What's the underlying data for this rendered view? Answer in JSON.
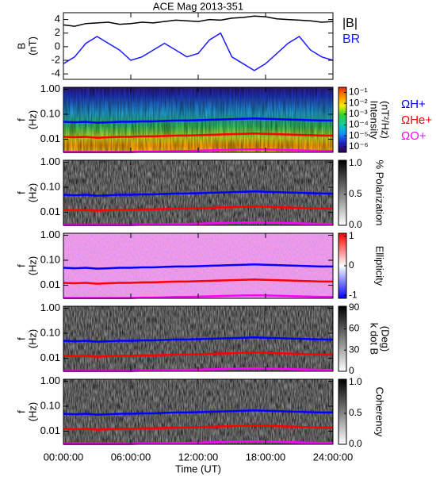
{
  "chart_data": [
    {
      "type": "line",
      "title": "ACE Mag 2013-351",
      "ylabel": [
        "B",
        "(nT)"
      ],
      "ylim": [
        -4.8,
        5
      ],
      "yticks": [
        -4,
        -2,
        0,
        2,
        4
      ],
      "x": [
        0,
        1,
        2,
        3,
        4,
        5,
        6,
        7,
        8,
        9,
        10,
        11,
        12,
        13,
        14,
        15,
        16,
        17,
        18,
        19,
        20,
        21,
        22,
        23,
        24
      ],
      "series": [
        {
          "name": "|B|",
          "color": "#000000",
          "values": [
            3.2,
            3.0,
            3.4,
            3.5,
            3.6,
            3.3,
            3.4,
            3.6,
            3.5,
            3.7,
            3.9,
            3.8,
            3.7,
            4.0,
            3.9,
            4.2,
            4.3,
            4.5,
            4.4,
            4.1,
            4.0,
            3.9,
            3.8,
            3.6,
            3.7
          ]
        },
        {
          "name": "BR",
          "color": "#1a1aff",
          "values": [
            -2.5,
            -1.5,
            0.5,
            1.5,
            0.5,
            -0.5,
            -2.0,
            -1.5,
            -0.5,
            0.5,
            -0.5,
            -1.5,
            -1.0,
            1.0,
            2.0,
            -1.5,
            -2.5,
            -3.5,
            -2.5,
            -1.0,
            0.5,
            1.5,
            -0.5,
            -1.5,
            -2.0
          ]
        }
      ]
    },
    {
      "type": "spectrogram",
      "ylabel": [
        "f",
        "(Hz)"
      ],
      "log": true,
      "ylim": [
        0.003,
        1.2
      ],
      "yticks": [
        {
          "value": 1,
          "label": "1.00"
        },
        {
          "value": 0.1,
          "label": "0.10"
        },
        {
          "value": 0.01,
          "label": "0.01"
        }
      ],
      "x": [
        0,
        1,
        2,
        3,
        4,
        5,
        6,
        7,
        8,
        9,
        10,
        11,
        12,
        13,
        14,
        15,
        16,
        17,
        18,
        19,
        20,
        21,
        22,
        23,
        24
      ],
      "series": [
        {
          "name": "ΩH+",
          "color": "#0000ff",
          "values": [
            0.05,
            0.048,
            0.05,
            0.046,
            0.048,
            0.05,
            0.05,
            0.052,
            0.052,
            0.054,
            0.056,
            0.056,
            0.058,
            0.06,
            0.062,
            0.064,
            0.066,
            0.068,
            0.066,
            0.064,
            0.062,
            0.06,
            0.058,
            0.056,
            0.056
          ]
        },
        {
          "name": "ΩHe+",
          "color": "#ff0000",
          "values": [
            0.0125,
            0.012,
            0.0125,
            0.0115,
            0.012,
            0.0125,
            0.0125,
            0.013,
            0.013,
            0.0135,
            0.014,
            0.014,
            0.0145,
            0.015,
            0.0155,
            0.016,
            0.0165,
            0.017,
            0.0165,
            0.016,
            0.0155,
            0.015,
            0.0145,
            0.014,
            0.014
          ]
        },
        {
          "name": "ΩO+",
          "color": "#ff00ff",
          "values": [
            0.0031,
            0.0031,
            0.0031,
            0.0031,
            0.0031,
            0.0031,
            0.0031,
            0.0032,
            0.0032,
            0.0033,
            0.0034,
            0.0034,
            0.0035,
            0.0036,
            0.0037,
            0.0038,
            0.0039,
            0.004,
            0.0039,
            0.0038,
            0.0037,
            0.0036,
            0.0035,
            0.0034,
            0.0034
          ]
        }
      ],
      "colorbar": {
        "label": [
          "Intensity",
          "(nT²/Hz)"
        ],
        "log": true,
        "lim": [
          3e-07,
          0.3
        ],
        "colors": [
          "#30004a",
          "#2020c0",
          "#1090ff",
          "#10d0a0",
          "#30d030",
          "#f0f000",
          "#ff9000",
          "#ff2000"
        ],
        "ticks": [
          {
            "value": 0.1,
            "label": "10⁻¹"
          },
          {
            "value": 0.01,
            "label": "10⁻²"
          },
          {
            "value": 0.001,
            "label": "10⁻³"
          },
          {
            "value": 0.0001,
            "label": "10⁻⁴"
          },
          {
            "value": 1e-05,
            "label": "10⁻⁵"
          },
          {
            "value": 1e-06,
            "label": "10⁻⁶"
          }
        ]
      }
    },
    {
      "type": "spectrogram",
      "ylabel": [
        "f",
        "(Hz)"
      ],
      "log": true,
      "ylim": [
        0.003,
        1.2
      ],
      "yticks": [
        {
          "value": 1,
          "label": "1.00"
        },
        {
          "value": 0.1,
          "label": "0.10"
        },
        {
          "value": 0.01,
          "label": "0.01"
        }
      ],
      "colorbar": {
        "label": [
          "% Polarization"
        ],
        "lim": [
          0,
          1.05
        ],
        "colors": [
          "#ffffff",
          "#000000"
        ],
        "ticks": [
          {
            "value": 0,
            "label": "0.0"
          },
          {
            "value": 0.5,
            "label": "0.5"
          },
          {
            "value": 1,
            "label": "1.0"
          }
        ]
      }
    },
    {
      "type": "spectrogram",
      "ylabel": [
        "f",
        "(Hz)"
      ],
      "log": true,
      "ylim": [
        0.003,
        1.2
      ],
      "yticks": [
        {
          "value": 1,
          "label": "1.00"
        },
        {
          "value": 0.1,
          "label": "0.10"
        },
        {
          "value": 0.01,
          "label": "0.01"
        }
      ],
      "colorbar": {
        "label": [
          "Ellipticity"
        ],
        "lim": [
          -1.1,
          1.1
        ],
        "colors": [
          "#0000ff",
          "#ffffff",
          "#ff0000"
        ],
        "ticks": [
          -1,
          0,
          1
        ]
      }
    },
    {
      "type": "spectrogram",
      "ylabel": [
        "f",
        "(Hz)"
      ],
      "log": true,
      "ylim": [
        0.003,
        1.2
      ],
      "yticks": [
        {
          "value": 1,
          "label": "1.00"
        },
        {
          "value": 0.1,
          "label": "0.10"
        },
        {
          "value": 0.01,
          "label": "0.01"
        }
      ],
      "colorbar": {
        "label": [
          "k dot B",
          "(Deg)"
        ],
        "lim": [
          0,
          92
        ],
        "colors": [
          "#ffffff",
          "#000000"
        ],
        "ticks": [
          0,
          30,
          60,
          90
        ]
      }
    },
    {
      "type": "spectrogram",
      "ylabel": [
        "f",
        "(Hz)"
      ],
      "log": true,
      "ylim": [
        0.003,
        1.2
      ],
      "yticks": [
        {
          "value": 1,
          "label": "1.00"
        },
        {
          "value": 0.1,
          "label": "0.10"
        },
        {
          "value": 0.01,
          "label": "0.01"
        }
      ],
      "colorbar": {
        "label": [
          "Coherency"
        ],
        "lim": [
          0,
          1.05
        ],
        "colors": [
          "#ffffff",
          "#000000"
        ],
        "ticks": [
          {
            "value": 0,
            "label": "0.0"
          },
          {
            "value": 0.5,
            "label": "0.5"
          },
          {
            "value": 1,
            "label": "1.0"
          }
        ]
      },
      "xlabel": "Time (UT)",
      "xlim": [
        0,
        24
      ],
      "xticks": [
        {
          "value": 0,
          "label": "00:00:00"
        },
        {
          "value": 6,
          "label": "06:00:00"
        },
        {
          "value": 12,
          "label": "12:00:00"
        },
        {
          "value": 18,
          "label": "18:00:00"
        },
        {
          "value": 24,
          "label": "24:00:00"
        }
      ]
    }
  ]
}
